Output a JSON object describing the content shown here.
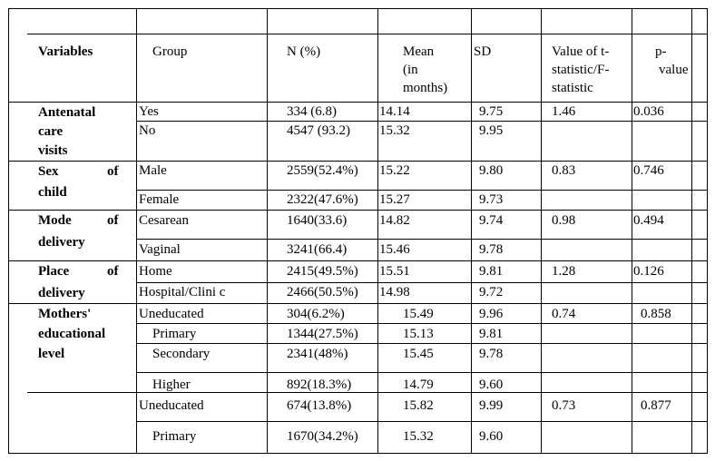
{
  "caption_fragment": "",
  "headers": {
    "variables": "Variables",
    "group": "Group",
    "n_pct": "N (%)",
    "mean_l1": "Mean",
    "mean_l2": "(in",
    "mean_l3": "months)",
    "sd": "SD",
    "stat_l1": "Value of t-",
    "stat_l2": "statistic/F-",
    "stat_l3": "statistic",
    "p_l1": "p-",
    "p_l2": "value"
  },
  "variables": {
    "antenatal_l1": "Antenatal",
    "antenatal_l2": "care",
    "antenatal_l3": "visits",
    "sex_l1a": "Sex",
    "sex_l1b": "of",
    "sex_l2": "child",
    "mode_l1a": "Mode",
    "mode_l1b": "of",
    "mode_l2": "delivery",
    "place_l1a": "Place",
    "place_l1b": "of",
    "place_l2": "delivery",
    "mothers_l1": "Mothers'",
    "mothers_l2": "educational",
    "mothers_l3": "level"
  },
  "rows": [
    {
      "group": "Yes",
      "n": "334 (6.8)",
      "mean": "14.14",
      "sd": "9.75",
      "stat": "1.46",
      "p": "0.036"
    },
    {
      "group": "No",
      "n": "4547 (93.2)",
      "mean": "15.32",
      "sd": "9.95",
      "stat": "",
      "p": ""
    },
    {
      "group": "Male",
      "n": "2559(52.4%)",
      "mean": "15.22",
      "sd": "9.80",
      "stat": "0.83",
      "p": "0.746"
    },
    {
      "group": "Female",
      "n": "2322(47.6%)",
      "mean": "15.27",
      "sd": "9.73",
      "stat": "",
      "p": ""
    },
    {
      "group": "Cesarean",
      "n": "1640(33.6)",
      "mean": "14.82",
      "sd": "9.74",
      "stat": "0.98",
      "p": "0.494"
    },
    {
      "group": "Vaginal",
      "n": "3241(66.4)",
      "mean": "15.46",
      "sd": "9.78",
      "stat": "",
      "p": ""
    },
    {
      "group": "Home",
      "n": "2415(49.5%)",
      "mean": "15.51",
      "sd": "9.81",
      "stat": "1.28",
      "p": "0.126"
    },
    {
      "group": "Hospital/Clini c",
      "n": "2466(50.5%)",
      "mean": "14.98",
      "sd": "9.72",
      "stat": "",
      "p": ""
    },
    {
      "group": "Uneducated",
      "n": "304(6.2%)",
      "mean": "15.49",
      "sd": "9.96",
      "stat": "0.74",
      "p": "0.858"
    },
    {
      "group": "Primary",
      "n": "1344(27.5%)",
      "mean": "15.13",
      "sd": "9.81",
      "stat": "",
      "p": ""
    },
    {
      "group": "Secondary",
      "n": "2341(48%)",
      "mean": "15.45",
      "sd": "9.78",
      "stat": "",
      "p": ""
    },
    {
      "group": "Higher",
      "n": "892(18.3%)",
      "mean": "14.79",
      "sd": "9.60",
      "stat": "",
      "p": ""
    },
    {
      "group": "Uneducated",
      "n": "674(13.8%)",
      "mean": "15.82",
      "sd": "9.99",
      "stat": "0.73",
      "p": "0.877"
    },
    {
      "group": "Primary",
      "n": "1670(34.2%)",
      "mean": "15.32",
      "sd": "9.60",
      "stat": "",
      "p": ""
    }
  ]
}
